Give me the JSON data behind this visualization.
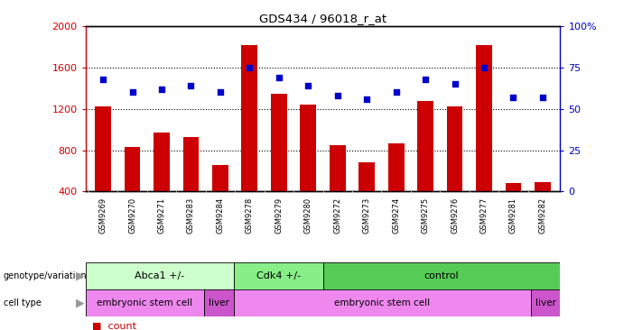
{
  "title": "GDS434 / 96018_r_at",
  "samples": [
    "GSM9269",
    "GSM9270",
    "GSM9271",
    "GSM9283",
    "GSM9284",
    "GSM9278",
    "GSM9279",
    "GSM9280",
    "GSM9272",
    "GSM9273",
    "GSM9274",
    "GSM9275",
    "GSM9276",
    "GSM9277",
    "GSM9281",
    "GSM9282"
  ],
  "counts": [
    1220,
    830,
    970,
    930,
    660,
    1820,
    1350,
    1240,
    850,
    680,
    870,
    1280,
    1220,
    1820,
    480,
    490
  ],
  "percentiles": [
    68,
    60,
    62,
    64,
    60,
    75,
    69,
    64,
    58,
    56,
    60,
    68,
    65,
    75,
    57,
    57
  ],
  "ylim_left": [
    400,
    2000
  ],
  "ylim_right": [
    0,
    100
  ],
  "yticks_left": [
    400,
    800,
    1200,
    1600,
    2000
  ],
  "yticks_right": [
    0,
    25,
    50,
    75,
    100
  ],
  "bar_color": "#CC0000",
  "dot_color": "#0000CC",
  "genotype_groups": [
    {
      "label": "Abca1 +/-",
      "start": 0,
      "end": 5,
      "color": "#ccffcc"
    },
    {
      "label": "Cdk4 +/-",
      "start": 5,
      "end": 8,
      "color": "#88ee88"
    },
    {
      "label": "control",
      "start": 8,
      "end": 16,
      "color": "#55cc55"
    }
  ],
  "celltype_groups": [
    {
      "label": "embryonic stem cell",
      "start": 0,
      "end": 4,
      "color": "#ee88ee"
    },
    {
      "label": "liver",
      "start": 4,
      "end": 5,
      "color": "#cc55cc"
    },
    {
      "label": "embryonic stem cell",
      "start": 5,
      "end": 15,
      "color": "#ee88ee"
    },
    {
      "label": "liver",
      "start": 15,
      "end": 16,
      "color": "#cc55cc"
    }
  ],
  "left_axis_color": "#CC0000",
  "right_axis_color": "#0000CC",
  "background_color": "#ffffff"
}
